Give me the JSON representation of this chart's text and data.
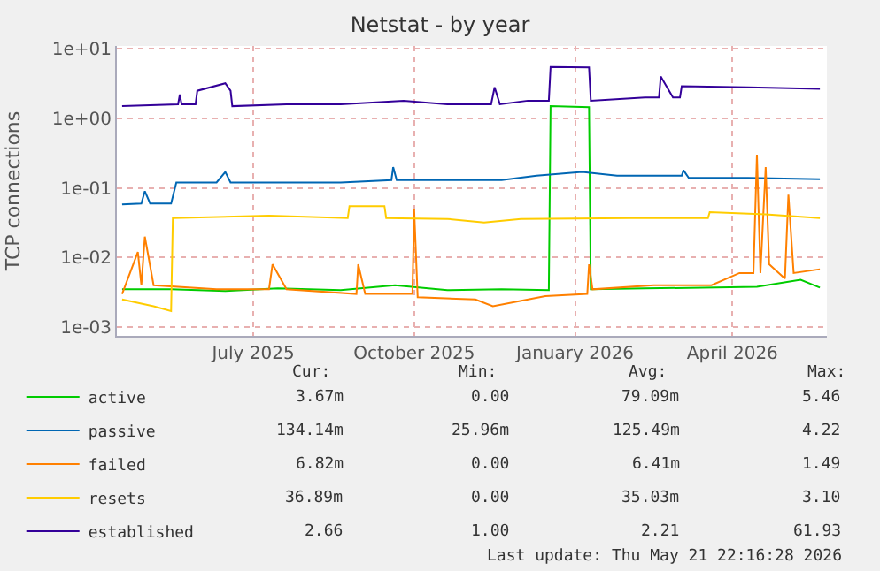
{
  "chart_data": {
    "type": "line",
    "title": "Netstat - by year",
    "ylabel": "TCP connections",
    "log": "y",
    "grid": true,
    "legend": "bottom left",
    "marker": "none",
    "line_style": "solid",
    "xlim": [
      "2025-04-14",
      "2026-05-25"
    ],
    "xticks": [
      {
        "value": "2025-07-01",
        "label": "July 2025"
      },
      {
        "value": "2025-10-01",
        "label": "October 2025"
      },
      {
        "value": "2026-01-01",
        "label": "January 2026"
      },
      {
        "value": "2026-04-01",
        "label": "April 2026"
      }
    ],
    "ylim": [
      0.00075,
      11
    ],
    "yticks": [
      {
        "value": 0.001,
        "label": "1e-03"
      },
      {
        "value": 0.01,
        "label": "1e-02"
      },
      {
        "value": 0.1,
        "label": "1e-01"
      },
      {
        "value": 1,
        "label": "1e+00"
      },
      {
        "value": 10,
        "label": "1e+01"
      }
    ],
    "series": [
      {
        "name": "active",
        "color": "#00cc00",
        "x": [
          "2025-04-17",
          "2025-05-15",
          "2025-06-15",
          "2025-07-15",
          "2025-08-20",
          "2025-09-20",
          "2025-10-20",
          "2025-11-20",
          "2025-12-17",
          "2025-12-18",
          "2026-01-09",
          "2026-01-10",
          "2026-02-10",
          "2026-03-15",
          "2026-04-15",
          "2026-05-10",
          "2026-05-21"
        ],
        "values": [
          0.0035,
          0.0035,
          0.0033,
          0.0036,
          0.0034,
          0.004,
          0.0034,
          0.0035,
          0.0034,
          1.5,
          1.45,
          0.0035,
          0.0036,
          0.0037,
          0.0038,
          0.0048,
          0.0037
        ]
      },
      {
        "name": "passive",
        "color": "#0066b3",
        "x": [
          "2025-04-17",
          "2025-04-28",
          "2025-04-30",
          "2025-05-03",
          "2025-05-15",
          "2025-05-18",
          "2025-06-10",
          "2025-06-15",
          "2025-06-18",
          "2025-07-20",
          "2025-08-20",
          "2025-09-18",
          "2025-09-19",
          "2025-09-21",
          "2025-10-20",
          "2025-11-20",
          "2025-12-10",
          "2026-01-05",
          "2026-01-25",
          "2026-03-03",
          "2026-03-04",
          "2026-03-07",
          "2026-04-10",
          "2026-05-21"
        ],
        "values": [
          0.058,
          0.06,
          0.09,
          0.06,
          0.06,
          0.12,
          0.12,
          0.17,
          0.12,
          0.12,
          0.12,
          0.13,
          0.2,
          0.13,
          0.13,
          0.13,
          0.15,
          0.17,
          0.15,
          0.15,
          0.18,
          0.14,
          0.14,
          0.134
        ]
      },
      {
        "name": "failed",
        "color": "#ff8000",
        "x": [
          "2025-04-17",
          "2025-04-26",
          "2025-04-28",
          "2025-04-30",
          "2025-05-05",
          "2025-06-10",
          "2025-07-10",
          "2025-07-12",
          "2025-07-20",
          "2025-08-29",
          "2025-08-30",
          "2025-09-03",
          "2025-09-30",
          "2025-10-01",
          "2025-10-03",
          "2025-11-05",
          "2025-11-15",
          "2025-12-15",
          "2026-01-08",
          "2026-01-09",
          "2026-01-11",
          "2026-02-15",
          "2026-03-20",
          "2026-04-05",
          "2026-04-13",
          "2026-04-15",
          "2026-04-17",
          "2026-04-20",
          "2026-04-22",
          "2026-05-01",
          "2026-05-03",
          "2026-05-06",
          "2026-05-21"
        ],
        "values": [
          0.003,
          0.012,
          0.004,
          0.02,
          0.004,
          0.0035,
          0.0035,
          0.008,
          0.0035,
          0.003,
          0.008,
          0.003,
          0.003,
          0.049,
          0.0027,
          0.0025,
          0.002,
          0.0028,
          0.003,
          0.008,
          0.0035,
          0.004,
          0.004,
          0.006,
          0.006,
          0.3,
          0.006,
          0.2,
          0.008,
          0.005,
          0.08,
          0.006,
          0.0068
        ]
      },
      {
        "name": "resets",
        "color": "#ffcc00",
        "x": [
          "2025-04-17",
          "2025-05-05",
          "2025-05-15",
          "2025-05-16",
          "2025-07-10",
          "2025-08-24",
          "2025-08-25",
          "2025-09-14",
          "2025-09-15",
          "2025-10-20",
          "2025-11-10",
          "2025-12-01",
          "2026-02-01",
          "2026-03-18",
          "2026-03-19",
          "2026-04-20",
          "2026-05-21"
        ],
        "values": [
          0.0025,
          0.002,
          0.0017,
          0.037,
          0.04,
          0.037,
          0.055,
          0.055,
          0.037,
          0.036,
          0.032,
          0.036,
          0.037,
          0.037,
          0.045,
          0.042,
          0.0369
        ]
      },
      {
        "name": "established",
        "color": "#330099",
        "x": [
          "2025-04-17",
          "2025-05-19",
          "2025-05-20",
          "2025-05-21",
          "2025-05-29",
          "2025-05-30",
          "2025-06-15",
          "2025-06-18",
          "2025-06-19",
          "2025-07-20",
          "2025-08-20",
          "2025-09-25",
          "2025-10-20",
          "2025-11-14",
          "2025-11-16",
          "2025-11-19",
          "2025-12-05",
          "2025-12-17",
          "2025-12-18",
          "2026-01-09",
          "2026-01-10",
          "2026-02-10",
          "2026-02-18",
          "2026-02-19",
          "2026-02-26",
          "2026-03-02",
          "2026-03-03",
          "2026-04-10",
          "2026-05-21"
        ],
        "values": [
          1.5,
          1.6,
          2.2,
          1.6,
          1.6,
          2.5,
          3.2,
          2.5,
          1.5,
          1.6,
          1.6,
          1.8,
          1.6,
          1.6,
          2.8,
          1.6,
          1.8,
          1.8,
          5.5,
          5.4,
          1.8,
          2.0,
          2.0,
          4.0,
          2.0,
          2.0,
          2.9,
          2.8,
          2.66
        ]
      }
    ],
    "annotations": [
      "Cur:",
      "Min:",
      "Avg:",
      "Max:",
      "3.67m",
      "0.00",
      "79.09m",
      "5.46",
      "134.14m",
      "25.96m",
      "125.49m",
      "4.22",
      "6.82m",
      "0.00",
      "6.41m",
      "1.49",
      "36.89m",
      "0.00",
      "35.03m",
      "3.10",
      "2.66",
      "1.00",
      "2.21",
      "61.93",
      "Last update: Thu May 21 22:16:28 2026"
    ]
  }
}
